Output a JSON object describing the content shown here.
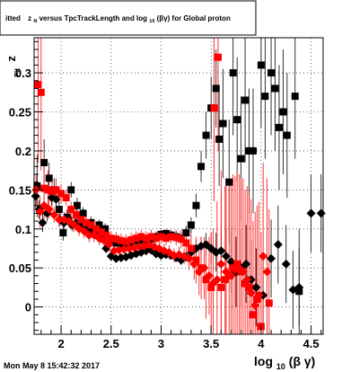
{
  "title": {
    "lead": "itted",
    "z": "z",
    "z_sub": "N",
    "mid": " versus TpcTrackLength and log",
    "log_sub": "10",
    "tail": " (βγ) for Global proton"
  },
  "ylabel": {
    "z": "z",
    "sub": "Fit"
  },
  "xlabel": {
    "log": "log",
    "sub": "10",
    "rest": " (β γ)"
  },
  "timestamp": "Mon May  8 15:42:32 2017",
  "chart_data": {
    "type": "scatter",
    "xlim": [
      1.73,
      4.62
    ],
    "ylim": [
      -0.035,
      0.345
    ],
    "xticks": [
      {
        "v": 2,
        "label": "2"
      },
      {
        "v": 2.5,
        "label": "2.5"
      },
      {
        "v": 3,
        "label": "3"
      },
      {
        "v": 3.5,
        "label": "3.5"
      },
      {
        "v": 4,
        "label": "4"
      },
      {
        "v": 4.5,
        "label": "4.5"
      }
    ],
    "yticks": [
      {
        "v": 0,
        "label": "0"
      },
      {
        "v": 0.05,
        "label": "0.05"
      },
      {
        "v": 0.1,
        "label": "0.1"
      },
      {
        "v": 0.15,
        "label": "0.15"
      },
      {
        "v": 0.2,
        "label": "0.2"
      },
      {
        "v": 0.25,
        "label": "0.25"
      },
      {
        "v": 0.3,
        "label": "0.3"
      }
    ],
    "grid": true,
    "series": [
      {
        "marker": "diamond",
        "color": "#000000",
        "err_color": "#000000",
        "points": [
          [
            1.745,
            0.142,
            0.015
          ],
          [
            1.78,
            0.125,
            0.012
          ],
          [
            1.815,
            0.108,
            0.012
          ],
          [
            1.86,
            0.12,
            0.01
          ],
          [
            1.905,
            0.14,
            0.01
          ],
          [
            1.95,
            0.138,
            0.01
          ],
          [
            1.99,
            0.112,
            0.008
          ],
          [
            2.03,
            0.108,
            0.008
          ],
          [
            2.07,
            0.114,
            0.008
          ],
          [
            2.11,
            0.105,
            0.008
          ],
          [
            2.15,
            0.108,
            0.007
          ],
          [
            2.2,
            0.105,
            0.007
          ],
          [
            2.25,
            0.1,
            0.006
          ],
          [
            2.3,
            0.098,
            0.006
          ],
          [
            2.35,
            0.094,
            0.006
          ],
          [
            2.4,
            0.088,
            0.006
          ],
          [
            2.45,
            0.075,
            0.006
          ],
          [
            2.5,
            0.065,
            0.005
          ],
          [
            2.55,
            0.062,
            0.005
          ],
          [
            2.6,
            0.063,
            0.005
          ],
          [
            2.65,
            0.064,
            0.005
          ],
          [
            2.7,
            0.066,
            0.005
          ],
          [
            2.75,
            0.068,
            0.005
          ],
          [
            2.8,
            0.07,
            0.005
          ],
          [
            2.85,
            0.072,
            0.005
          ],
          [
            2.9,
            0.073,
            0.005
          ],
          [
            2.95,
            0.068,
            0.005
          ],
          [
            3.0,
            0.066,
            0.005
          ],
          [
            3.05,
            0.067,
            0.005
          ],
          [
            3.1,
            0.066,
            0.005
          ],
          [
            3.15,
            0.063,
            0.005
          ],
          [
            3.2,
            0.06,
            0.006
          ],
          [
            3.25,
            0.064,
            0.006
          ],
          [
            3.3,
            0.07,
            0.008
          ],
          [
            3.35,
            0.075,
            0.01
          ],
          [
            3.4,
            0.078,
            0.012
          ],
          [
            3.45,
            0.08,
            0.015
          ],
          [
            3.5,
            0.075,
            0.02
          ],
          [
            3.55,
            0.07,
            0.025
          ],
          [
            3.6,
            0.072,
            0.03
          ],
          [
            3.65,
            0.065,
            0.035
          ],
          [
            3.7,
            0.058,
            0.04
          ],
          [
            3.75,
            0.045,
            0.045
          ],
          [
            3.8,
            0.05,
            0.05
          ],
          [
            3.85,
            0.055,
            0.05
          ],
          [
            3.9,
            0.035,
            0.05
          ],
          [
            3.95,
            0.025,
            0.05
          ],
          [
            4.02,
            0.015,
            0.05
          ],
          [
            4.1,
            0.062,
            0.05
          ],
          [
            4.17,
            0.08,
            0.05
          ],
          [
            4.25,
            0.055,
            0.05
          ],
          [
            4.32,
            0.022,
            0.05
          ],
          [
            4.38,
            0.025,
            0.05
          ],
          [
            4.5,
            0.12,
            0.05
          ],
          [
            4.6,
            0.12,
            0.05
          ]
        ]
      },
      {
        "marker": "square",
        "color": "#000000",
        "err_color": "#000000",
        "points": [
          [
            1.76,
            0.155,
            0.04
          ],
          [
            1.83,
            0.185,
            0.03
          ],
          [
            1.88,
            0.165,
            0.02
          ],
          [
            1.93,
            0.15,
            0.015
          ],
          [
            1.98,
            0.125,
            0.012
          ],
          [
            2.02,
            0.095,
            0.01
          ],
          [
            2.06,
            0.115,
            0.01
          ],
          [
            2.1,
            0.15,
            0.01
          ],
          [
            2.16,
            0.13,
            0.01
          ],
          [
            2.22,
            0.12,
            0.008
          ],
          [
            2.3,
            0.108,
            0.008
          ],
          [
            2.38,
            0.105,
            0.007
          ],
          [
            2.44,
            0.1,
            0.007
          ],
          [
            2.5,
            0.085,
            0.006
          ],
          [
            2.55,
            0.082,
            0.006
          ],
          [
            2.6,
            0.08,
            0.006
          ],
          [
            2.65,
            0.079,
            0.006
          ],
          [
            2.7,
            0.083,
            0.006
          ],
          [
            2.75,
            0.085,
            0.006
          ],
          [
            2.8,
            0.086,
            0.006
          ],
          [
            2.85,
            0.085,
            0.006
          ],
          [
            2.9,
            0.087,
            0.006
          ],
          [
            2.95,
            0.09,
            0.006
          ],
          [
            3.0,
            0.093,
            0.006
          ],
          [
            3.05,
            0.094,
            0.006
          ],
          [
            3.1,
            0.092,
            0.006
          ],
          [
            3.15,
            0.09,
            0.007
          ],
          [
            3.2,
            0.088,
            0.008
          ],
          [
            3.25,
            0.095,
            0.009
          ],
          [
            3.3,
            0.105,
            0.01
          ],
          [
            3.35,
            0.13,
            0.015
          ],
          [
            3.4,
            0.18,
            0.02
          ],
          [
            3.45,
            0.22,
            0.03
          ],
          [
            3.5,
            0.255,
            0.04
          ],
          [
            3.55,
            0.28,
            0.05
          ],
          [
            3.58,
            0.215,
            0.06
          ],
          [
            3.62,
            0.235,
            0.07
          ],
          [
            3.68,
            0.16,
            0.08
          ],
          [
            3.72,
            0.3,
            0.08
          ],
          [
            3.76,
            0.24,
            0.08
          ],
          [
            3.8,
            0.19,
            0.08
          ],
          [
            3.84,
            0.265,
            0.08
          ],
          [
            3.88,
            0.2,
            0.08
          ],
          [
            3.92,
            0.2,
            0.08
          ],
          [
            4.0,
            0.31,
            0.08
          ],
          [
            4.04,
            0.27,
            0.08
          ],
          [
            4.1,
            0.3,
            0.08
          ],
          [
            4.14,
            0.28,
            0.08
          ],
          [
            4.18,
            0.23,
            0.08
          ],
          [
            4.22,
            0.25,
            0.08
          ],
          [
            4.26,
            0.22,
            0.08
          ],
          [
            4.34,
            0.27,
            0.08
          ],
          [
            4.38,
            0.02,
            0.08
          ]
        ]
      },
      {
        "marker": "diamond",
        "color": "#ff0000",
        "err_color": "#ff0000",
        "points": [
          [
            1.75,
            0.15,
            0.02
          ],
          [
            1.79,
            0.122,
            0.02
          ],
          [
            1.83,
            0.13,
            0.015
          ],
          [
            1.88,
            0.125,
            0.012
          ],
          [
            1.93,
            0.118,
            0.01
          ],
          [
            1.98,
            0.112,
            0.01
          ],
          [
            2.03,
            0.112,
            0.01
          ],
          [
            2.08,
            0.11,
            0.009
          ],
          [
            2.13,
            0.105,
            0.009
          ],
          [
            2.18,
            0.1,
            0.009
          ],
          [
            2.23,
            0.097,
            0.009
          ],
          [
            2.28,
            0.092,
            0.009
          ],
          [
            2.33,
            0.092,
            0.009
          ],
          [
            2.38,
            0.088,
            0.009
          ],
          [
            2.43,
            0.085,
            0.009
          ],
          [
            2.48,
            0.08,
            0.009
          ],
          [
            2.53,
            0.072,
            0.009
          ],
          [
            2.58,
            0.073,
            0.009
          ],
          [
            2.63,
            0.074,
            0.009
          ],
          [
            2.68,
            0.075,
            0.009
          ],
          [
            2.73,
            0.076,
            0.009
          ],
          [
            2.78,
            0.077,
            0.009
          ],
          [
            2.83,
            0.078,
            0.009
          ],
          [
            2.88,
            0.08,
            0.009
          ],
          [
            2.93,
            0.077,
            0.009
          ],
          [
            2.98,
            0.075,
            0.009
          ],
          [
            3.03,
            0.072,
            0.009
          ],
          [
            3.08,
            0.07,
            0.009
          ],
          [
            3.13,
            0.066,
            0.009
          ],
          [
            3.18,
            0.067,
            0.01
          ],
          [
            3.23,
            0.065,
            0.01
          ],
          [
            3.28,
            0.062,
            0.015
          ],
          [
            3.33,
            0.055,
            0.02
          ],
          [
            3.38,
            0.045,
            0.03
          ],
          [
            3.43,
            0.05,
            0.04
          ],
          [
            3.48,
            0.04,
            0.05
          ],
          [
            3.52,
            0.03,
            0.07
          ],
          [
            3.56,
            0.035,
            0.1
          ],
          [
            3.6,
            0.055,
            0.12
          ],
          [
            3.65,
            0.045,
            0.12
          ],
          [
            3.7,
            0.04,
            0.12
          ],
          [
            3.74,
            0.048,
            0.12
          ],
          [
            3.78,
            0.05,
            0.12
          ],
          [
            3.82,
            0.045,
            0.12
          ],
          [
            3.86,
            0.035,
            0.12
          ],
          [
            3.9,
            0.018,
            0.12
          ],
          [
            3.94,
            0.002,
            0.12
          ],
          [
            3.98,
            0.015,
            0.12
          ],
          [
            4.02,
            0.065,
            0.12
          ],
          [
            4.06,
            0.045,
            0.12
          ]
        ]
      },
      {
        "marker": "square",
        "color": "#ff0000",
        "err_color": "#ff0000",
        "points": [
          [
            1.77,
            0.285,
            0.1
          ],
          [
            1.8,
            0.275,
            0.1
          ],
          [
            1.83,
            0.152,
            0.04
          ],
          [
            1.87,
            0.15,
            0.025
          ],
          [
            1.91,
            0.148,
            0.02
          ],
          [
            1.95,
            0.15,
            0.015
          ],
          [
            2.0,
            0.145,
            0.012
          ],
          [
            2.05,
            0.14,
            0.01
          ],
          [
            2.1,
            0.125,
            0.01
          ],
          [
            2.15,
            0.118,
            0.01
          ],
          [
            2.2,
            0.112,
            0.009
          ],
          [
            2.25,
            0.108,
            0.009
          ],
          [
            2.3,
            0.105,
            0.009
          ],
          [
            2.35,
            0.1,
            0.009
          ],
          [
            2.4,
            0.096,
            0.009
          ],
          [
            2.45,
            0.092,
            0.009
          ],
          [
            2.5,
            0.088,
            0.009
          ],
          [
            2.55,
            0.087,
            0.009
          ],
          [
            2.6,
            0.085,
            0.009
          ],
          [
            2.65,
            0.084,
            0.009
          ],
          [
            2.7,
            0.086,
            0.009
          ],
          [
            2.75,
            0.088,
            0.009
          ],
          [
            2.8,
            0.09,
            0.009
          ],
          [
            2.85,
            0.088,
            0.009
          ],
          [
            2.9,
            0.09,
            0.009
          ],
          [
            2.95,
            0.088,
            0.009
          ],
          [
            3.0,
            0.09,
            0.009
          ],
          [
            3.05,
            0.088,
            0.009
          ],
          [
            3.1,
            0.09,
            0.009
          ],
          [
            3.15,
            0.089,
            0.01
          ],
          [
            3.2,
            0.087,
            0.012
          ],
          [
            3.25,
            0.082,
            0.015
          ],
          [
            3.3,
            0.075,
            0.02
          ],
          [
            3.35,
            0.06,
            0.03
          ],
          [
            3.4,
            0.05,
            0.04
          ],
          [
            3.45,
            0.035,
            0.05
          ],
          [
            3.5,
            0.025,
            0.07
          ],
          [
            3.53,
            0.255,
            0.12
          ],
          [
            3.57,
            0.32,
            0.12
          ],
          [
            3.6,
            0.025,
            0.12
          ],
          [
            3.64,
            0.035,
            0.12
          ],
          [
            3.68,
            0.04,
            0.12
          ],
          [
            3.72,
            0.05,
            0.12
          ],
          [
            3.76,
            0.055,
            0.12
          ],
          [
            3.8,
            0.045,
            0.12
          ],
          [
            3.84,
            0.03,
            0.12
          ],
          [
            3.88,
            0.025,
            0.12
          ],
          [
            3.92,
            -0.01,
            0.12
          ],
          [
            3.96,
            0.01,
            0.12
          ],
          [
            4.0,
            -0.025,
            0.12
          ],
          [
            4.08,
            0.005,
            0.12
          ]
        ]
      }
    ]
  }
}
